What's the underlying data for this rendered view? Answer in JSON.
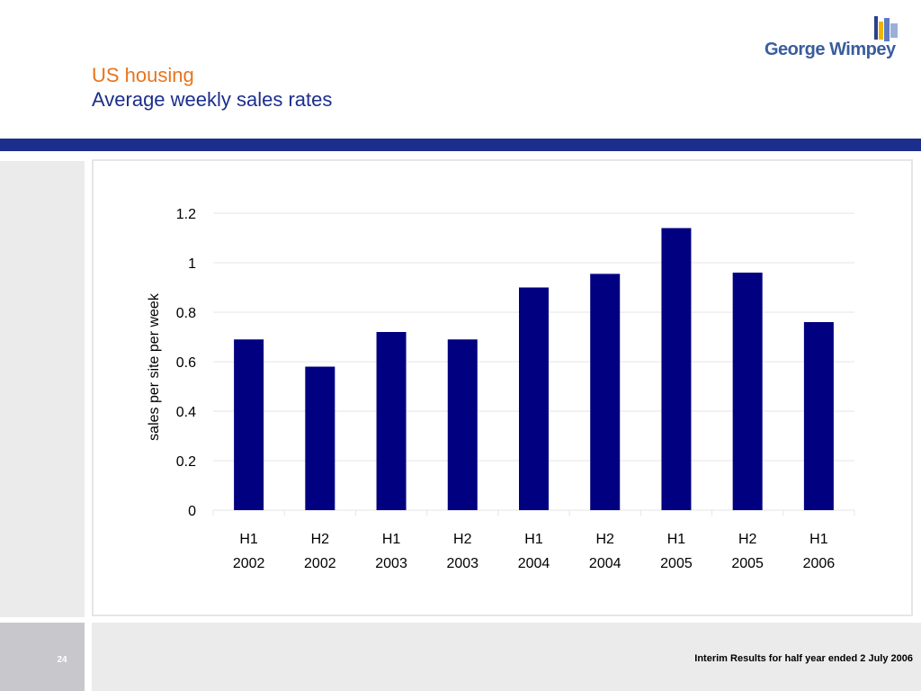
{
  "header": {
    "title": "US housing",
    "subtitle": "Average weekly sales rates",
    "logo_text": "George Wimpey"
  },
  "colors": {
    "accent_orange": "#e8741c",
    "navy": "#1c2e8c",
    "bar": "#000080",
    "panel_grey": "#ebebeb"
  },
  "chart_data": {
    "type": "bar",
    "categories": [
      "H1 2002",
      "H2 2002",
      "H1 2003",
      "H2 2003",
      "H1 2004",
      "H2 2004",
      "H1 2005",
      "H2 2005",
      "H1 2006"
    ],
    "category_lines": [
      [
        "H1",
        "2002"
      ],
      [
        "H2",
        "2002"
      ],
      [
        "H1",
        "2003"
      ],
      [
        "H2",
        "2003"
      ],
      [
        "H1",
        "2004"
      ],
      [
        "H2",
        "2004"
      ],
      [
        "H1",
        "2005"
      ],
      [
        "H2",
        "2005"
      ],
      [
        "H1",
        "2006"
      ]
    ],
    "values": [
      0.69,
      0.58,
      0.72,
      0.69,
      0.9,
      0.955,
      1.14,
      0.96,
      0.76
    ],
    "ylabel": "sales per site per week",
    "ylim": [
      0,
      1.2
    ],
    "yticks": [
      0,
      0.2,
      0.4,
      0.6,
      0.8,
      1,
      1.2
    ],
    "ytick_labels": [
      "0",
      "0.2",
      "0.4",
      "0.6",
      "0.8",
      "1",
      "1.2"
    ],
    "grid": true,
    "legend": "none"
  },
  "footer": {
    "page_number": "24",
    "text": "Interim Results for half year ended 2 July 2006"
  }
}
